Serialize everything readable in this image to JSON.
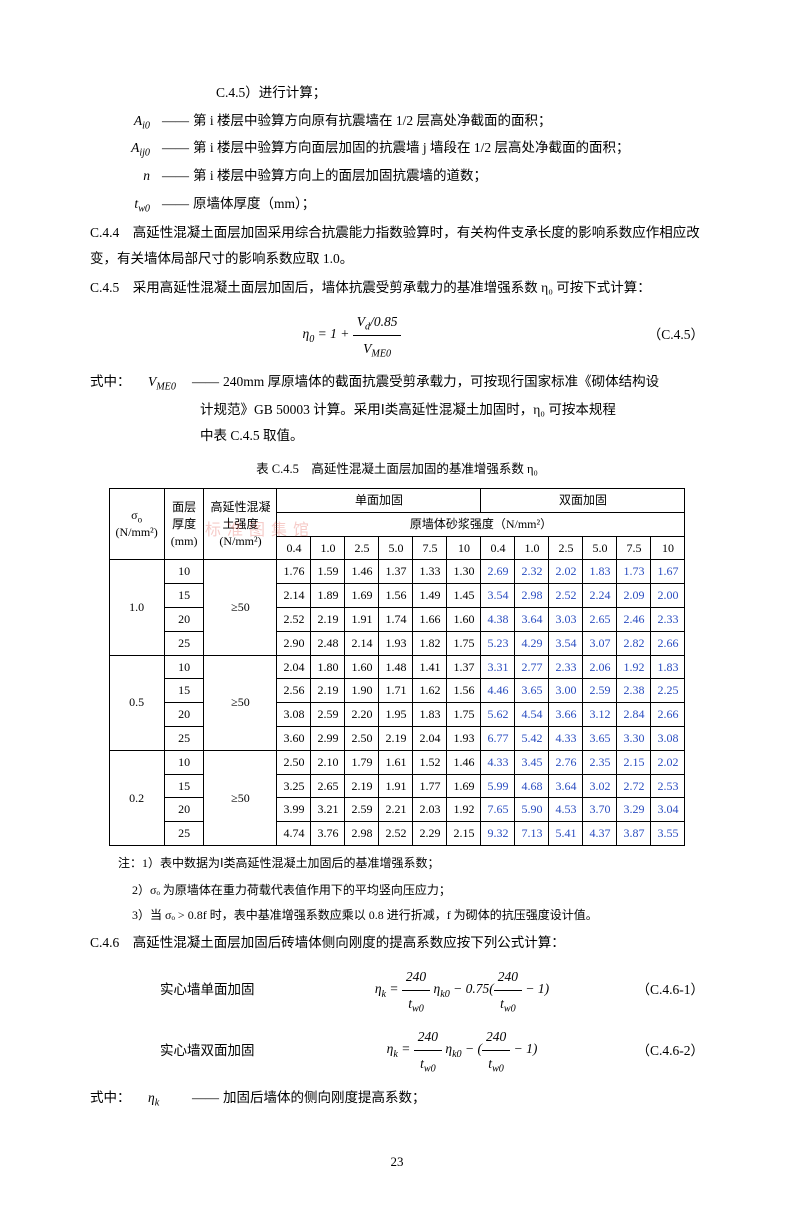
{
  "top_continuation": "C.4.5）进行计算；",
  "defs": [
    {
      "symbol_html": "A<sub>i0</sub>",
      "text": "第 i 楼层中验算方向原有抗震墙在 1/2 层高处净截面的面积；"
    },
    {
      "symbol_html": "A<sub>ij0</sub>",
      "text": "第 i 楼层中验算方向面层加固的抗震墙 j 墙段在 1/2 层高处净截面的面积；"
    },
    {
      "symbol_html": "n",
      "text": "第 i 楼层中验算方向上的面层加固抗震墙的道数；"
    },
    {
      "symbol_html": "t<sub>w0</sub>",
      "text": "原墙体厚度（mm）；"
    }
  ],
  "c44": "C.4.4　高延性混凝土面层加固采用综合抗震能力指数验算时，有关构件支承长度的影响系数应作相应改变，有关墙体局部尺寸的影响系数应取 1.0。",
  "c45_lead": "C.4.5　采用高延性混凝土面层加固后，墙体抗震受剪承载力的基准增强系数 η₀ 可按下式计算：",
  "formula_c45": {
    "expr_html": "η<sub>0</sub> = 1 + <span class=\"frac\"><span class=\"num\">V<sub>d</sub>/0.85</span><span class=\"den\">V<sub>ME0</sub></span></span>",
    "num": "（C.4.5）"
  },
  "where_c45": {
    "label": "式中：",
    "sym_html": "V<sub>ME0</sub>",
    "line1": "240mm 厚原墙体的截面抗震受剪承载力，可按现行国家标准《砌体结构设",
    "line2": "计规范》GB 50003 计算。采用Ⅰ类高延性混凝土加固时，η₀ 可按本规程",
    "line3": "中表 C.4.5 取值。"
  },
  "table": {
    "title": "表 C.4.5　高延性混凝土面层加固的基准增强系数 η₀",
    "col_sigma_html": "σ<sub>o</sub><br>(N/mm²)",
    "col_thick": "面层\n厚度\n(mm)",
    "col_strength_html": "高延性混凝<br>土强度<br>(N/mm²)",
    "group1": "单面加固",
    "group2": "双面加固",
    "sub_header": "原墙体砂浆强度（N/mm²）",
    "mortar_levels": [
      "0.4",
      "1.0",
      "2.5",
      "5.0",
      "7.5",
      "10",
      "0.4",
      "1.0",
      "2.5",
      "5.0",
      "7.5",
      "10"
    ],
    "thicknesses": [
      "10",
      "15",
      "20",
      "25"
    ],
    "strength_cond": "≥50",
    "sigma_groups": [
      {
        "sigma": "1.0",
        "rows": [
          [
            "1.76",
            "1.59",
            "1.46",
            "1.37",
            "1.33",
            "1.30",
            "2.69",
            "2.32",
            "2.02",
            "1.83",
            "1.73",
            "1.67"
          ],
          [
            "2.14",
            "1.89",
            "1.69",
            "1.56",
            "1.49",
            "1.45",
            "3.54",
            "2.98",
            "2.52",
            "2.24",
            "2.09",
            "2.00"
          ],
          [
            "2.52",
            "2.19",
            "1.91",
            "1.74",
            "1.66",
            "1.60",
            "4.38",
            "3.64",
            "3.03",
            "2.65",
            "2.46",
            "2.33"
          ],
          [
            "2.90",
            "2.48",
            "2.14",
            "1.93",
            "1.82",
            "1.75",
            "5.23",
            "4.29",
            "3.54",
            "3.07",
            "2.82",
            "2.66"
          ]
        ]
      },
      {
        "sigma": "0.5",
        "rows": [
          [
            "2.04",
            "1.80",
            "1.60",
            "1.48",
            "1.41",
            "1.37",
            "3.31",
            "2.77",
            "2.33",
            "2.06",
            "1.92",
            "1.83"
          ],
          [
            "2.56",
            "2.19",
            "1.90",
            "1.71",
            "1.62",
            "1.56",
            "4.46",
            "3.65",
            "3.00",
            "2.59",
            "2.38",
            "2.25"
          ],
          [
            "3.08",
            "2.59",
            "2.20",
            "1.95",
            "1.83",
            "1.75",
            "5.62",
            "4.54",
            "3.66",
            "3.12",
            "2.84",
            "2.66"
          ],
          [
            "3.60",
            "2.99",
            "2.50",
            "2.19",
            "2.04",
            "1.93",
            "6.77",
            "5.42",
            "4.33",
            "3.65",
            "3.30",
            "3.08"
          ]
        ]
      },
      {
        "sigma": "0.2",
        "rows": [
          [
            "2.50",
            "2.10",
            "1.79",
            "1.61",
            "1.52",
            "1.46",
            "4.33",
            "3.45",
            "2.76",
            "2.35",
            "2.15",
            "2.02"
          ],
          [
            "3.25",
            "2.65",
            "2.19",
            "1.91",
            "1.77",
            "1.69",
            "5.99",
            "4.68",
            "3.64",
            "3.02",
            "2.72",
            "2.53"
          ],
          [
            "3.99",
            "3.21",
            "2.59",
            "2.21",
            "2.03",
            "1.92",
            "7.65",
            "5.90",
            "4.53",
            "3.70",
            "3.29",
            "3.04"
          ],
          [
            "4.74",
            "3.76",
            "2.98",
            "2.52",
            "2.29",
            "2.15",
            "9.32",
            "7.13",
            "5.41",
            "4.37",
            "3.87",
            "3.55"
          ]
        ]
      }
    ],
    "blue_cols": [
      false,
      false,
      false,
      false,
      false,
      false,
      true,
      true,
      true,
      true,
      true,
      true
    ]
  },
  "notes": {
    "lead": "注：1）表中数据为Ⅰ类高延性混凝土加固后的基准增强系数；",
    "n2": "2）σₒ 为原墙体在重力荷载代表值作用下的平均竖向压应力；",
    "n3": "3）当 σₒ > 0.8f 时，表中基准增强系数应乘以 0.8 进行折减，f 为砌体的抗压强度设计值。"
  },
  "c46_lead": "C.4.6　高延性混凝土面层加固后砖墙体侧向刚度的提高系数应按下列公式计算：",
  "c46_labels": {
    "single": "实心墙单面加固",
    "double": "实心墙双面加固"
  },
  "formula_c461": {
    "expr_html": "η<sub>k</sub> = <span class=\"frac\"><span class=\"num\">240</span><span class=\"den\">t<sub>w0</sub></span></span> η<sub>k0</sub> − 0.75(<span class=\"frac\"><span class=\"num\">240</span><span class=\"den\">t<sub>w0</sub></span></span> − 1)",
    "num": "（C.4.6-1）"
  },
  "formula_c462": {
    "expr_html": "η<sub>k</sub> = <span class=\"frac\"><span class=\"num\">240</span><span class=\"den\">t<sub>w0</sub></span></span> η<sub>k0</sub> − (<span class=\"frac\"><span class=\"num\">240</span><span class=\"den\">t<sub>w0</sub></span></span> − 1)",
    "num": "（C.4.6-2）"
  },
  "where_c46": {
    "label": "式中：",
    "sym_html": "η<sub>k</sub>",
    "text": "加固后墙体的侧向刚度提高系数；"
  },
  "page": "23"
}
